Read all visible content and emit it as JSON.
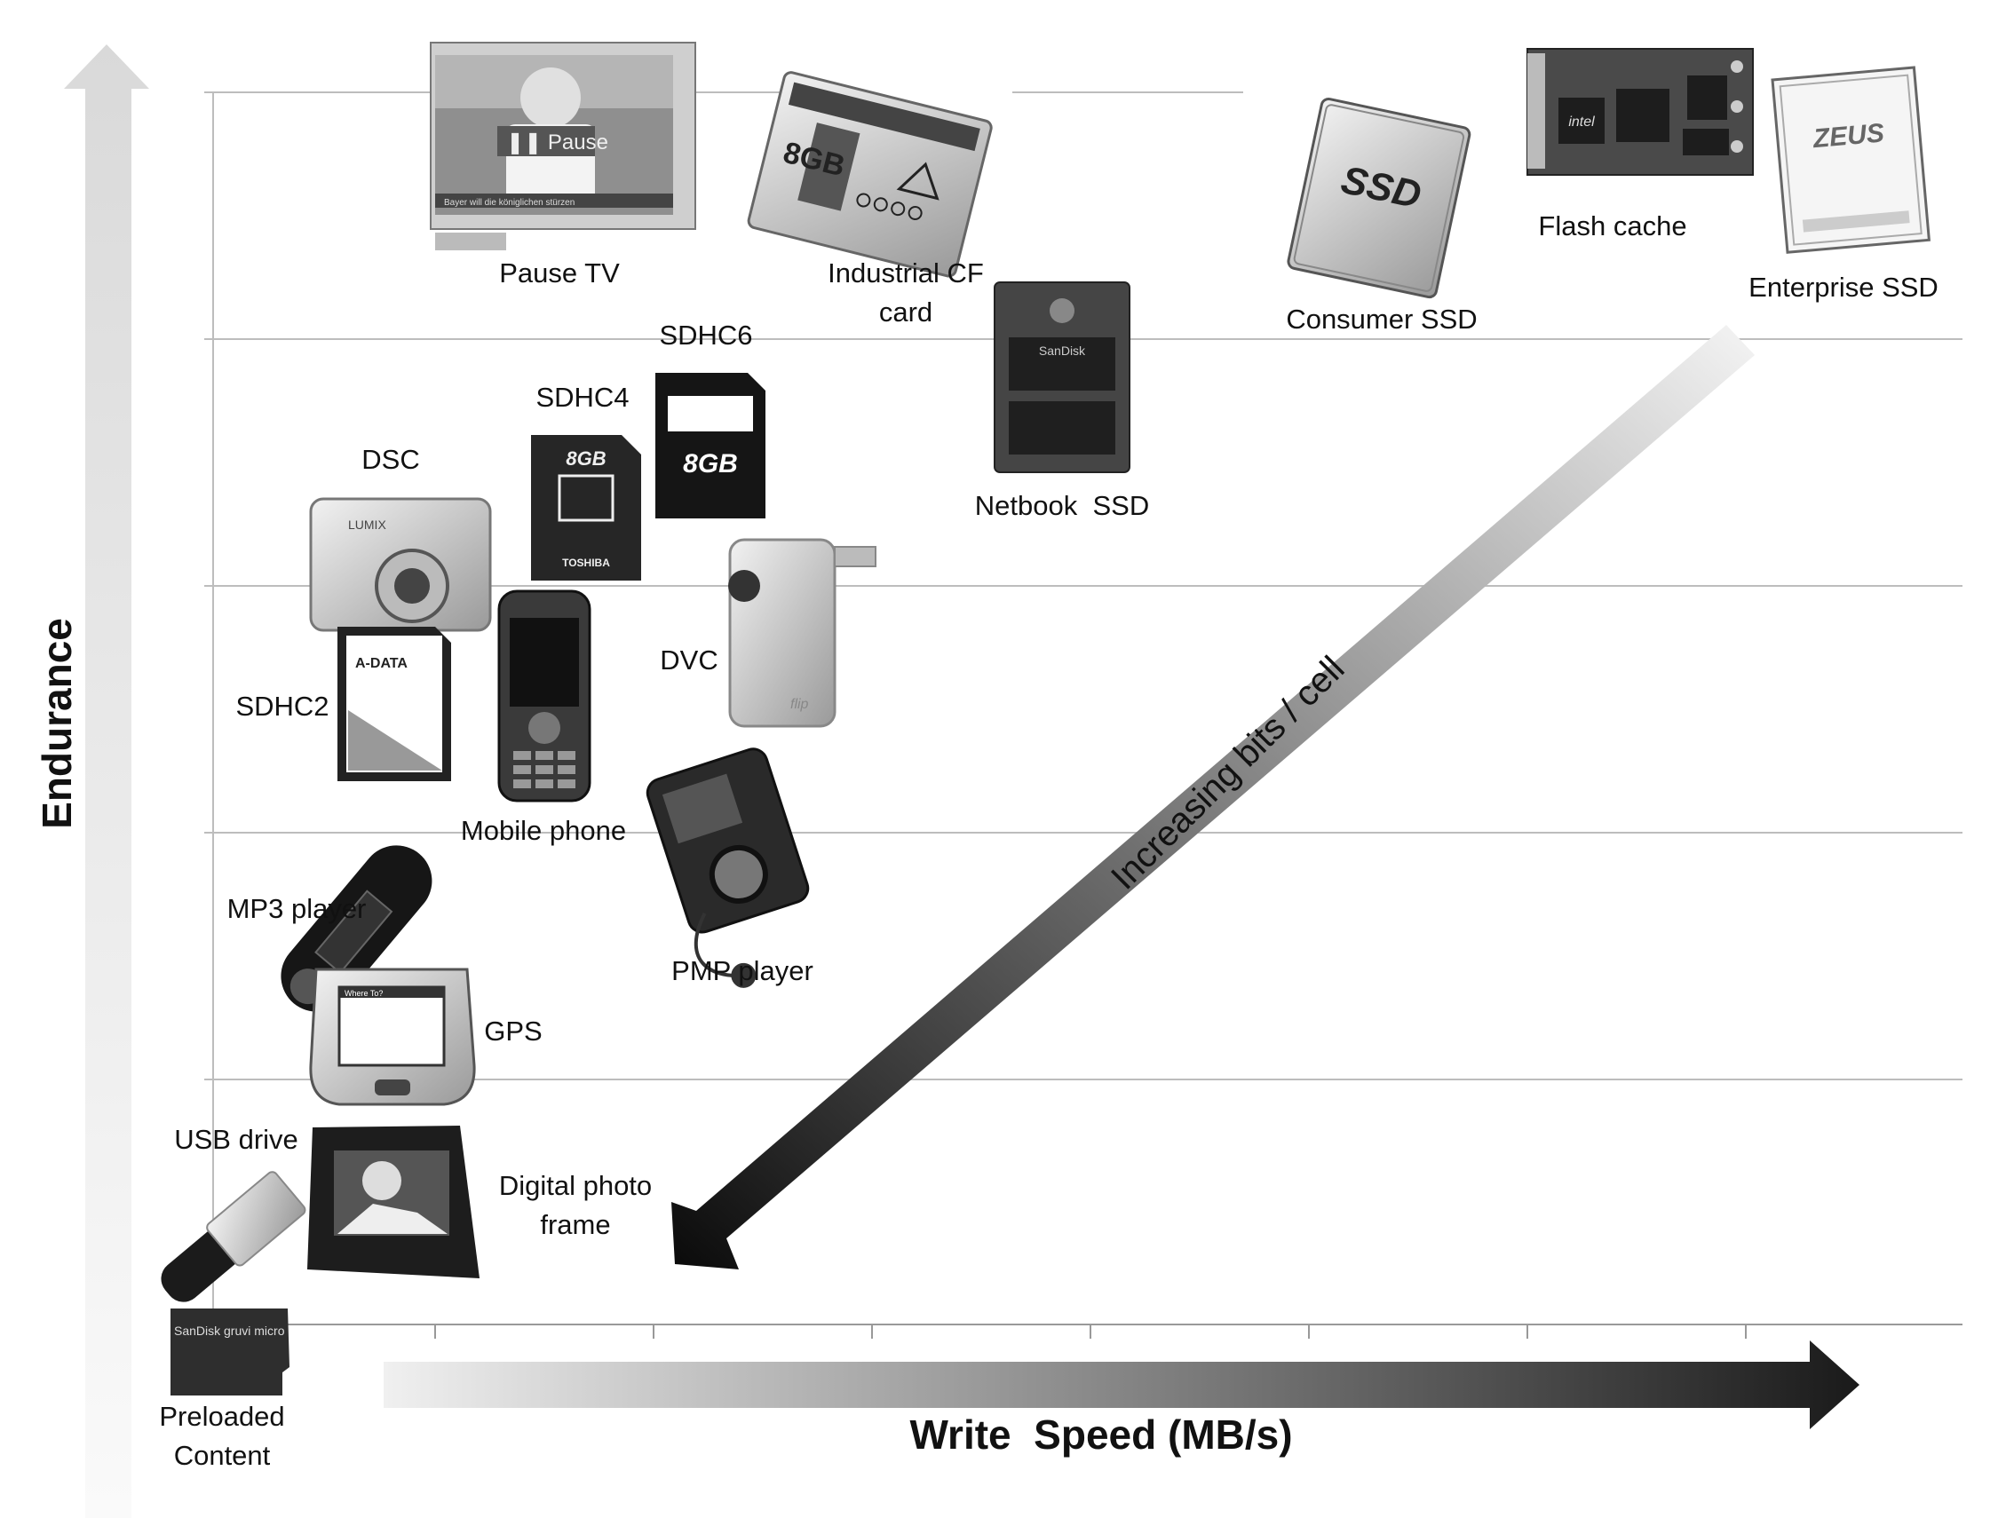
{
  "axes": {
    "y_label": "Endurance",
    "x_label": "Write  Speed (MB/s)",
    "diagonal_label": "Increasing bits / cell"
  },
  "devices": [
    {
      "key": "pause-tv",
      "label_lines": [
        "Pause TV"
      ],
      "image_text": "Pause",
      "caption": "Bayer will die königlichen stürzen"
    },
    {
      "key": "industrial-cf",
      "label_lines": [
        "Industrial CF",
        "card"
      ],
      "image_text": "8GB"
    },
    {
      "key": "consumer-ssd",
      "label_lines": [
        "Consumer SSD"
      ],
      "image_text": "SSD"
    },
    {
      "key": "flash-cache",
      "label_lines": [
        "Flash cache"
      ],
      "image_text": "intel"
    },
    {
      "key": "enterprise-ssd",
      "label_lines": [
        "Enterprise SSD"
      ],
      "image_text": "ZEUS"
    },
    {
      "key": "netbook-ssd",
      "label_lines": [
        "Netbook  SSD"
      ],
      "image_text": "SanDisk"
    },
    {
      "key": "sdhc6",
      "label_lines": [
        "SDHC6"
      ],
      "image_text": "8GB"
    },
    {
      "key": "sdhc4",
      "label_lines": [
        "SDHC4"
      ],
      "image_text": "8GB",
      "brand": "TOSHIBA"
    },
    {
      "key": "dsc",
      "label_lines": [
        "DSC"
      ],
      "image_text": "LUMIX"
    },
    {
      "key": "dvc",
      "label_lines": [
        "DVC"
      ],
      "image_text": "flip"
    },
    {
      "key": "sdhc2",
      "label_lines": [
        "SDHC2"
      ],
      "image_text": "A-DATA"
    },
    {
      "key": "mobile-phone",
      "label_lines": [
        "Mobile phone"
      ]
    },
    {
      "key": "mp3-player",
      "label_lines": [
        "MP3 player"
      ]
    },
    {
      "key": "pmp-player",
      "label_lines": [
        "PMP player"
      ]
    },
    {
      "key": "gps",
      "label_lines": [
        "GPS"
      ],
      "image_text": "Where To?"
    },
    {
      "key": "usb-drive",
      "label_lines": [
        "USB drive"
      ]
    },
    {
      "key": "digital-photo-frame",
      "label_lines": [
        "Digital photo",
        "frame"
      ]
    },
    {
      "key": "preloaded-content",
      "label_lines": [
        "Preloaded",
        "Content"
      ],
      "image_text": "SanDisk gruvi micro"
    }
  ],
  "colors": {
    "grid": "#bfbfbf",
    "arrow_light": "#f2f2f2",
    "arrow_dark": "#111111",
    "device_fill": "#d6d6d6",
    "device_dark": "#3a3a3a"
  }
}
